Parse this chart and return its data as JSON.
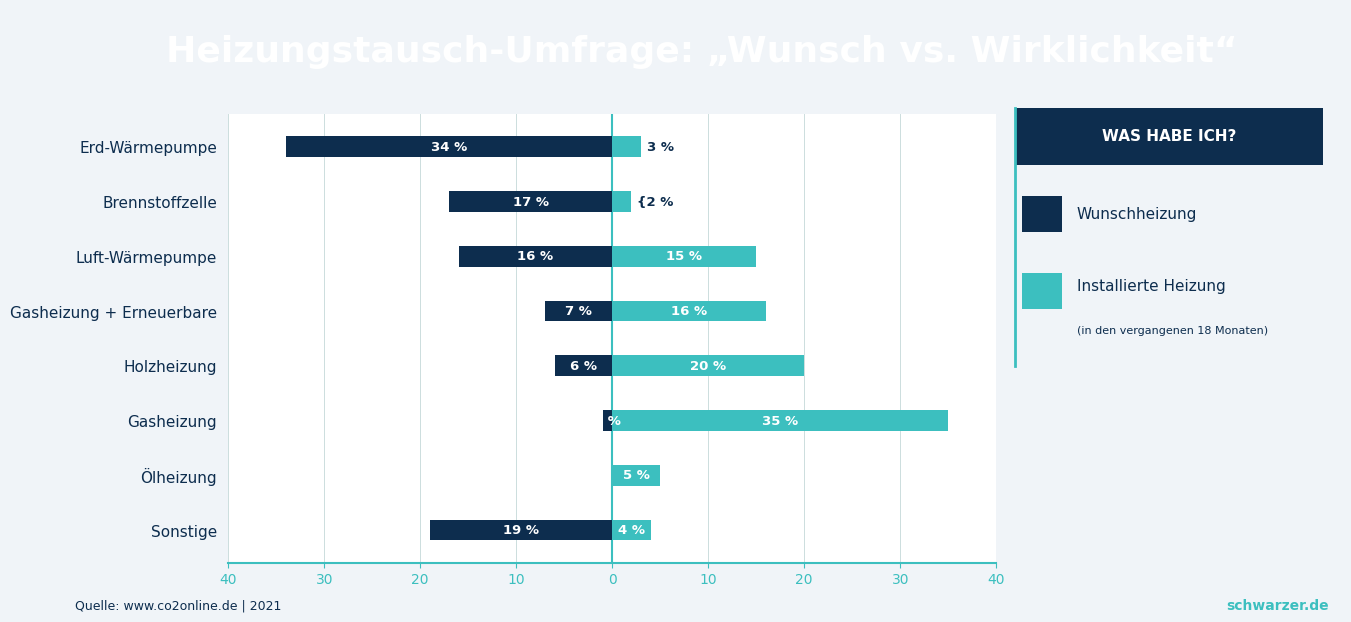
{
  "title": "Heizungstausch-Umfrage: „Wunsch vs. Wirklichkeit“",
  "title_color": "#ffffff",
  "title_bg_color": "#0d2d4e",
  "bg_color": "#f0f4f8",
  "plot_bg_color": "#ffffff",
  "categories": [
    "Erd-Wärmepumpe",
    "Brennstoffzelle",
    "Luft-Wärmepumpe",
    "Gasheizung + Erneuerbare",
    "Holzheizung",
    "Gasheizung",
    "Ölheizung",
    "Sonstige"
  ],
  "wunsch": [
    34,
    17,
    16,
    7,
    6,
    1,
    0,
    19
  ],
  "installiert": [
    3,
    2,
    15,
    16,
    20,
    35,
    5,
    4
  ],
  "wunsch_labels": [
    "34 %",
    "17 %",
    "16 %",
    "7 %",
    "6 %",
    "1 %",
    "",
    "19 %"
  ],
  "installiert_labels": [
    "3 %",
    "{2 %",
    "15 %",
    "16 %",
    "20 %",
    "35 %",
    "5 %",
    "4 %"
  ],
  "dark_color": "#0d2d4e",
  "teal_color": "#3cbfbf",
  "legend_title": "WAS HABE ICH?",
  "legend_label1": "Wunschheizung",
  "legend_label2": "Installierte Heizung",
  "legend_sublabel2": "(in den vergangenen 18 Monaten)",
  "source": "Quelle: www.co2online.de | 2021",
  "brand": "schwarzer.de",
  "xlim": 40
}
